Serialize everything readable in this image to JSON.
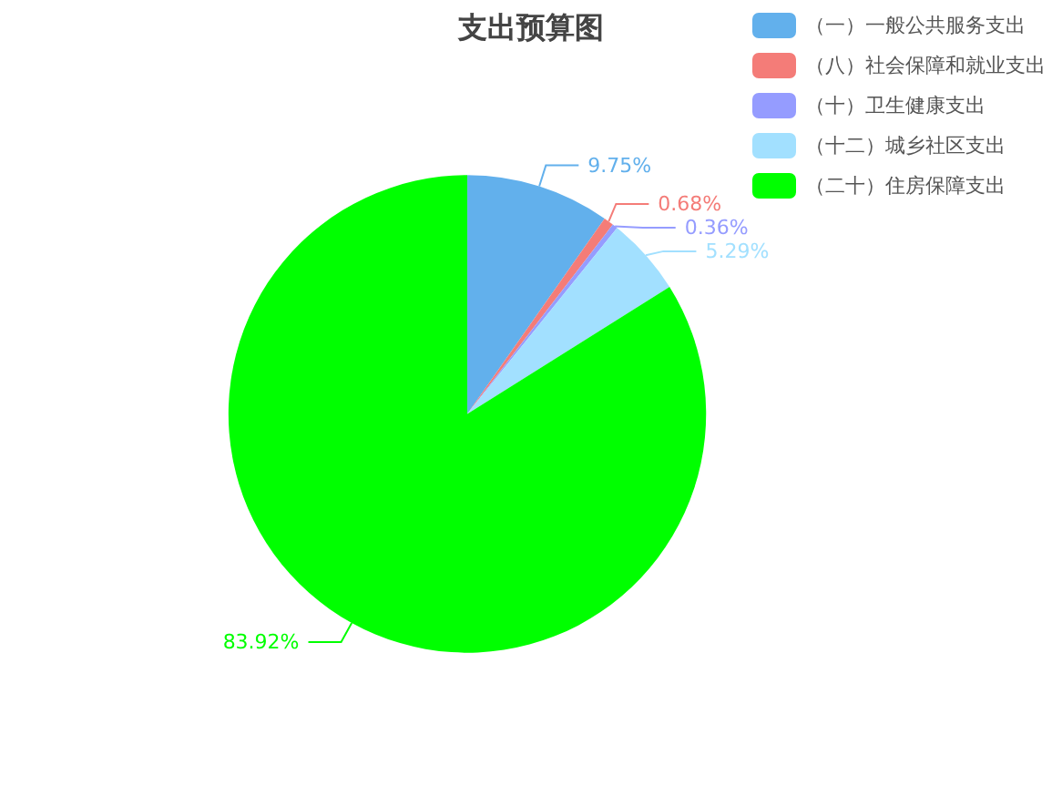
{
  "chart_data": {
    "type": "pie",
    "title": "支出预算图",
    "categories": [
      "（一）一般公共服务支出",
      "（八）社会保障和就业支出",
      "（十）卫生健康支出",
      "（十二）城乡社区支出",
      "（二十）住房保障支出"
    ],
    "values": [
      9.75,
      0.68,
      0.36,
      5.29,
      83.92
    ],
    "value_labels": [
      "9.75%",
      "0.68%",
      "0.36%",
      "5.29%",
      "83.92%"
    ],
    "colors": [
      "#62b0ec",
      "#f47c78",
      "#959cff",
      "#a2e0ff",
      "#00ff00"
    ],
    "legend": "top right"
  }
}
